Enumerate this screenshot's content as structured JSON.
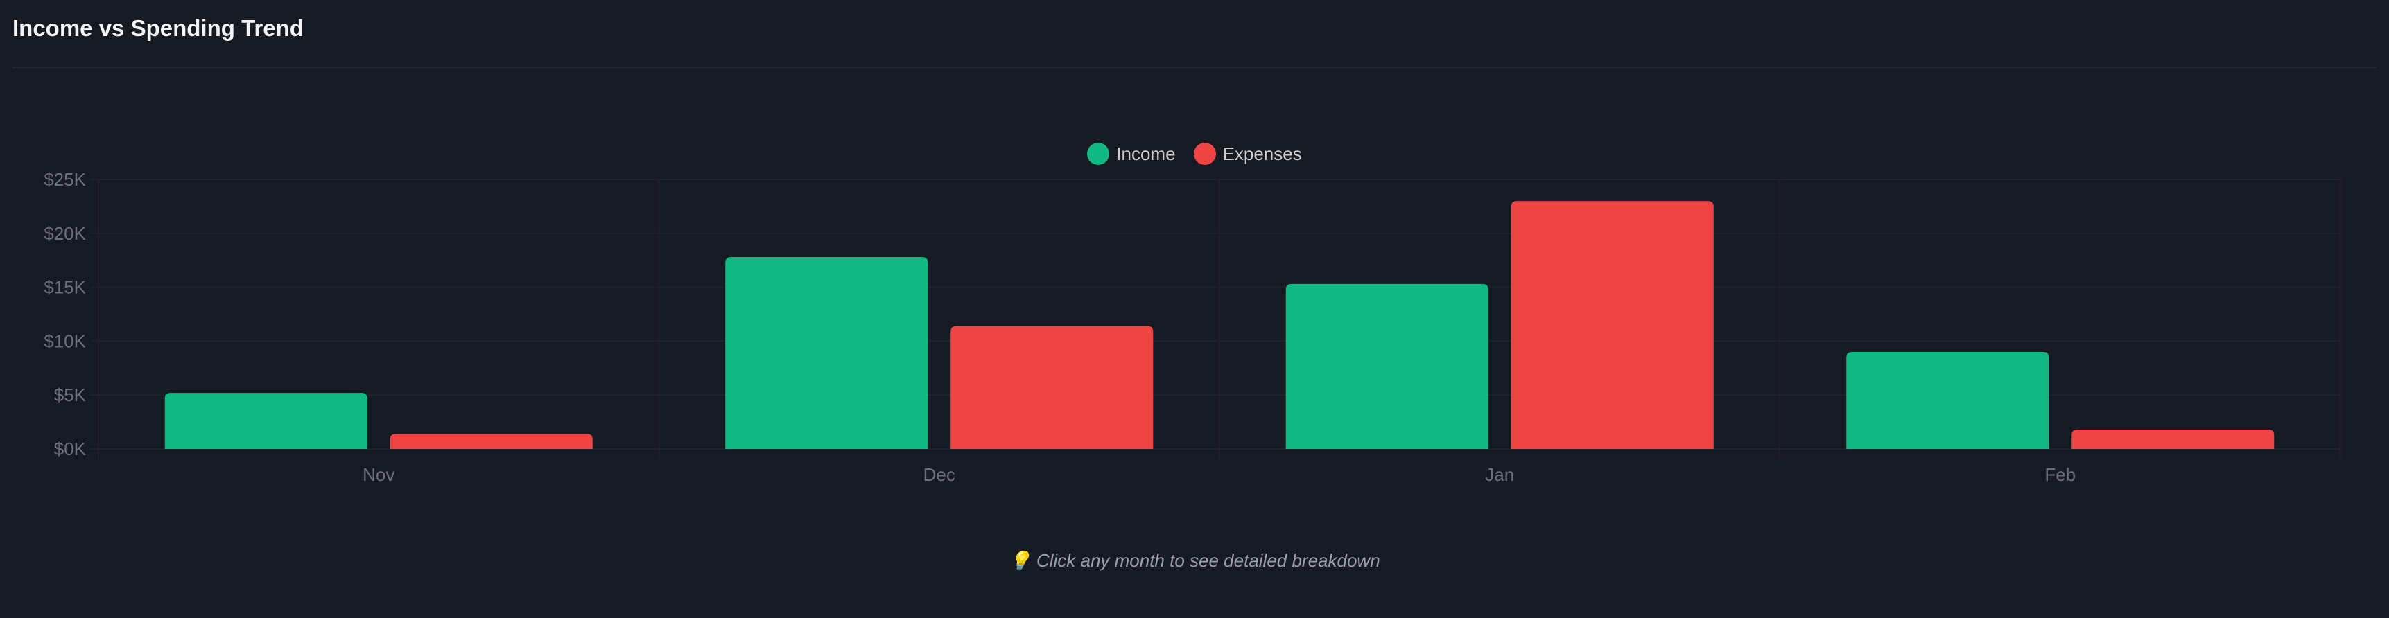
{
  "header": {
    "title": "Income vs Spending Trend"
  },
  "footer": {
    "hint_icon": "lightbulb-icon",
    "hint_emoji": "💡",
    "hint": "Click any month to see detailed breakdown"
  },
  "chart_data": {
    "type": "bar",
    "title": "",
    "xlabel": "",
    "ylabel": "",
    "categories": [
      "Nov",
      "Dec",
      "Jan",
      "Feb"
    ],
    "series": [
      {
        "name": "Income",
        "color": "#10b981",
        "values": [
          5200,
          17800,
          15300,
          9000
        ]
      },
      {
        "name": "Expenses",
        "color": "#ef4444",
        "values": [
          1400,
          11400,
          23000,
          1800
        ]
      }
    ],
    "ylim": [
      0,
      25000
    ],
    "yticks": [
      0,
      5000,
      10000,
      15000,
      20000,
      25000
    ],
    "ytick_labels": [
      "$0K",
      "$5K",
      "$10K",
      "$15K",
      "$20K",
      "$25K"
    ],
    "grid": true,
    "legend_position": "top-center"
  }
}
